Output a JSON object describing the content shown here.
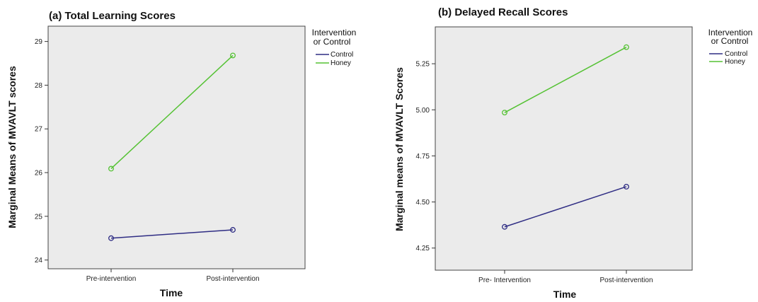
{
  "chart_data": [
    {
      "type": "line",
      "title": "(a)  Total Learning Scores",
      "xlabel": "Time",
      "ylabel": "Marginal Means of MVAVLT scores",
      "categories": [
        "Pre-intervention",
        "Post-intervention"
      ],
      "ylim": [
        23.8,
        29.35
      ],
      "yticks": [
        "24",
        "25",
        "26",
        "27",
        "28",
        "29"
      ],
      "grid": false,
      "legend": {
        "title_line1": "Intervention",
        "title_line2": "or Control",
        "placement": "right"
      },
      "series": [
        {
          "name": "Control",
          "color": "#2f2d84",
          "values": [
            24.5,
            24.69
          ]
        },
        {
          "name": "Honey",
          "color": "#55c234",
          "values": [
            26.09,
            28.68
          ]
        }
      ]
    },
    {
      "type": "line",
      "title": "(b)  Delayed Recall Scores",
      "xlabel": "Time",
      "ylabel": "Marginal means of MVAVLT Scores",
      "categories": [
        "Pre- Intervention",
        "Post-intervention"
      ],
      "ylim": [
        4.13,
        5.45
      ],
      "yticks": [
        "4.25",
        "4.50",
        "4.75",
        "5.00",
        "5.25"
      ],
      "grid": false,
      "legend": {
        "title_line1": "Intervention",
        "title_line2": "or Control",
        "placement": "right"
      },
      "series": [
        {
          "name": "Control",
          "color": "#2f2d84",
          "values": [
            4.365,
            4.583
          ]
        },
        {
          "name": "Honey",
          "color": "#55c234",
          "values": [
            4.985,
            5.34
          ]
        }
      ]
    }
  ]
}
